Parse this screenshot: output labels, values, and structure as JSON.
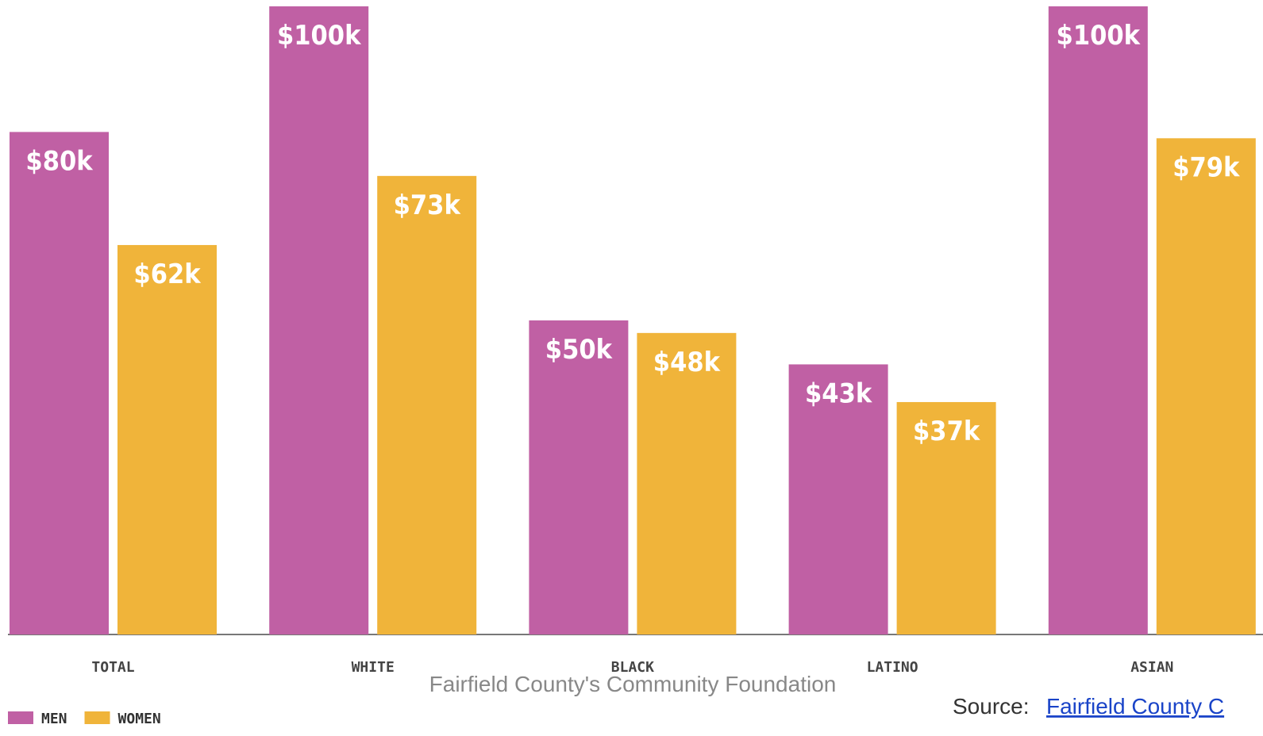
{
  "chart_data": {
    "type": "bar",
    "categories": [
      "TOTAL",
      "WHITE",
      "BLACK",
      "LATINO",
      "ASIAN"
    ],
    "series": [
      {
        "name": "MEN",
        "color": "#c060a4",
        "values": [
          80,
          100,
          50,
          43,
          100
        ],
        "value_labels": [
          "$80k",
          "$100k",
          "$50k",
          "$43k",
          "$100k"
        ]
      },
      {
        "name": "WOMEN",
        "color": "#f0b43a",
        "values": [
          62,
          73,
          48,
          37,
          79
        ],
        "value_labels": [
          "$62k",
          "$73k",
          "$48k",
          "$37k",
          "$79k"
        ]
      }
    ],
    "ylim": [
      0,
      100
    ],
    "legend": "bottom-left",
    "caption": "Fairfield County's Community Foundation",
    "source_prefix": "Source:",
    "source_link": "Fairfield County C"
  }
}
